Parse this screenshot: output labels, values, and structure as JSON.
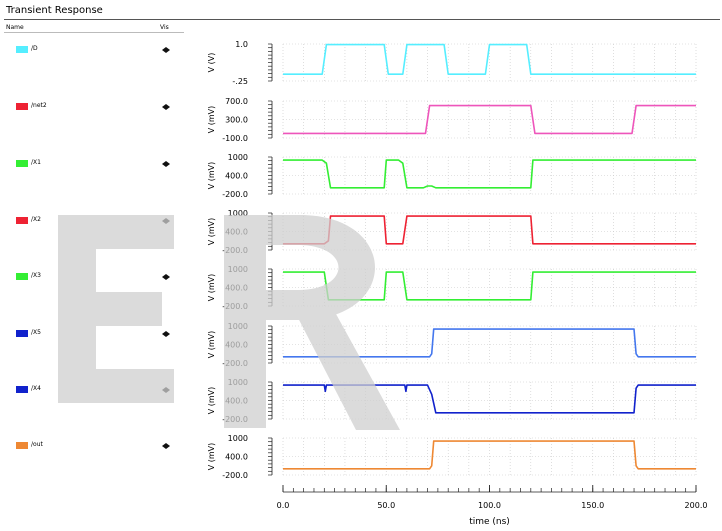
{
  "header": {
    "title": "Transient Response",
    "col_name": "Name",
    "col_vis": "Vis"
  },
  "colors": {
    "cyan": "#55eeff",
    "red": "#ee2233",
    "green": "#33ee33",
    "blue": "#1122cc",
    "orange": "#ee8833",
    "pink": "#ee55bb",
    "lightblue": "#4477ee"
  },
  "signals": [
    {
      "name": "/D",
      "swatch": "#55eeff"
    },
    {
      "name": "/net2",
      "swatch": "#ee2233"
    },
    {
      "name": "/X1",
      "swatch": "#33ee33"
    },
    {
      "name": "/X2",
      "swatch": "#ee2233"
    },
    {
      "name": "/X3",
      "swatch": "#33ee33"
    },
    {
      "name": "/X5",
      "swatch": "#1122cc"
    },
    {
      "name": "/X4",
      "swatch": "#1122cc"
    },
    {
      "name": "/out",
      "swatch": "#ee8833"
    }
  ],
  "chart_data": {
    "type": "line",
    "xlabel": "time (ns)",
    "xlim": [
      0,
      200
    ],
    "xticks": [
      "0.0",
      "50.0",
      "100.0",
      "150.0",
      "200.0"
    ],
    "grid": true,
    "panels": [
      {
        "ylabel": "V (V)",
        "ylim": [
          -0.25,
          1.0
        ],
        "ticks": [
          "1.0",
          "-.25"
        ],
        "tick_values": [
          1.0,
          -0.25
        ],
        "color": "#55eeff",
        "points": [
          [
            0,
            -0.02
          ],
          [
            19,
            -0.02
          ],
          [
            21,
            0.98
          ],
          [
            49,
            0.98
          ],
          [
            51,
            -0.02
          ],
          [
            58,
            -0.02
          ],
          [
            60,
            0.98
          ],
          [
            78,
            0.98
          ],
          [
            80,
            -0.02
          ],
          [
            98,
            -0.02
          ],
          [
            100,
            0.98
          ],
          [
            118,
            0.98
          ],
          [
            120,
            -0.02
          ],
          [
            200,
            -0.02
          ]
        ]
      },
      {
        "ylabel": "V (mV)",
        "ylim": [
          -100,
          700
        ],
        "ticks": [
          "700.0",
          "300.0",
          "-100.0"
        ],
        "tick_values": [
          700,
          300,
          -100
        ],
        "color": "#ee55bb",
        "points": [
          [
            0,
            0
          ],
          [
            69,
            0
          ],
          [
            71,
            600
          ],
          [
            120,
            600
          ],
          [
            122,
            0
          ],
          [
            169,
            0
          ],
          [
            171,
            600
          ],
          [
            200,
            600
          ]
        ]
      },
      {
        "ylabel": "V (mV)",
        "ylim": [
          -200,
          1000
        ],
        "ticks": [
          "1000",
          "400.0",
          "-200.0"
        ],
        "tick_values": [
          1000,
          400,
          -200
        ],
        "color": "#33ee33",
        "points": [
          [
            0,
            900
          ],
          [
            19,
            900
          ],
          [
            21,
            800
          ],
          [
            23,
            0
          ],
          [
            49,
            0
          ],
          [
            50,
            900
          ],
          [
            56,
            900
          ],
          [
            58,
            800
          ],
          [
            60,
            0
          ],
          [
            68,
            0
          ],
          [
            70,
            60
          ],
          [
            72,
            60
          ],
          [
            74,
            0
          ],
          [
            120,
            0
          ],
          [
            121,
            900
          ],
          [
            200,
            900
          ]
        ]
      },
      {
        "ylabel": "V (mV)",
        "ylim": [
          -200,
          1000
        ],
        "ticks": [
          "1000",
          "400.0",
          "-200.0"
        ],
        "tick_values": [
          1000,
          400,
          -200
        ],
        "color": "#ee2233",
        "points": [
          [
            0,
            0
          ],
          [
            20,
            0
          ],
          [
            22,
            100
          ],
          [
            23,
            900
          ],
          [
            49,
            900
          ],
          [
            50,
            0
          ],
          [
            58,
            0
          ],
          [
            60,
            900
          ],
          [
            120,
            900
          ],
          [
            121,
            0
          ],
          [
            200,
            0
          ]
        ]
      },
      {
        "ylabel": "V (mV)",
        "ylim": [
          -200,
          1000
        ],
        "ticks": [
          "1000",
          "400.0",
          "-200.0"
        ],
        "tick_values": [
          1000,
          400,
          -200
        ],
        "color": "#33ee33",
        "points": [
          [
            0,
            900
          ],
          [
            20,
            900
          ],
          [
            22,
            0
          ],
          [
            49,
            0
          ],
          [
            50,
            900
          ],
          [
            58,
            900
          ],
          [
            60,
            0
          ],
          [
            120,
            0
          ],
          [
            121,
            900
          ],
          [
            200,
            900
          ]
        ]
      },
      {
        "ylabel": "V (mV)",
        "ylim": [
          -200,
          1000
        ],
        "ticks": [
          "1000",
          "400.0",
          "-200.0"
        ],
        "tick_values": [
          1000,
          400,
          -200
        ],
        "color": "#4477ee",
        "points": [
          [
            0,
            0
          ],
          [
            71,
            0
          ],
          [
            72,
            100
          ],
          [
            73,
            900
          ],
          [
            170,
            900
          ],
          [
            171,
            100
          ],
          [
            172,
            0
          ],
          [
            200,
            0
          ]
        ]
      },
      {
        "ylabel": "V (mV)",
        "ylim": [
          -200,
          1000
        ],
        "ticks": [
          "1000",
          "400.0",
          "-200.0"
        ],
        "tick_values": [
          1000,
          400,
          -200
        ],
        "color": "#1122cc",
        "points": [
          [
            0,
            900
          ],
          [
            20,
            900
          ],
          [
            20.5,
            700
          ],
          [
            21,
            900
          ],
          [
            59,
            900
          ],
          [
            59.5,
            700
          ],
          [
            60,
            900
          ],
          [
            70,
            900
          ],
          [
            72,
            600
          ],
          [
            74,
            0
          ],
          [
            170,
            0
          ],
          [
            171,
            800
          ],
          [
            172,
            900
          ],
          [
            200,
            900
          ]
        ]
      },
      {
        "ylabel": "V (mV)",
        "ylim": [
          -200,
          1000
        ],
        "ticks": [
          "1000",
          "400.0",
          "-200.0"
        ],
        "tick_values": [
          1000,
          400,
          -200
        ],
        "color": "#ee8833",
        "points": [
          [
            0,
            0
          ],
          [
            71,
            0
          ],
          [
            72,
            100
          ],
          [
            73,
            900
          ],
          [
            170,
            900
          ],
          [
            171,
            100
          ],
          [
            172,
            0
          ],
          [
            200,
            0
          ]
        ]
      }
    ]
  }
}
